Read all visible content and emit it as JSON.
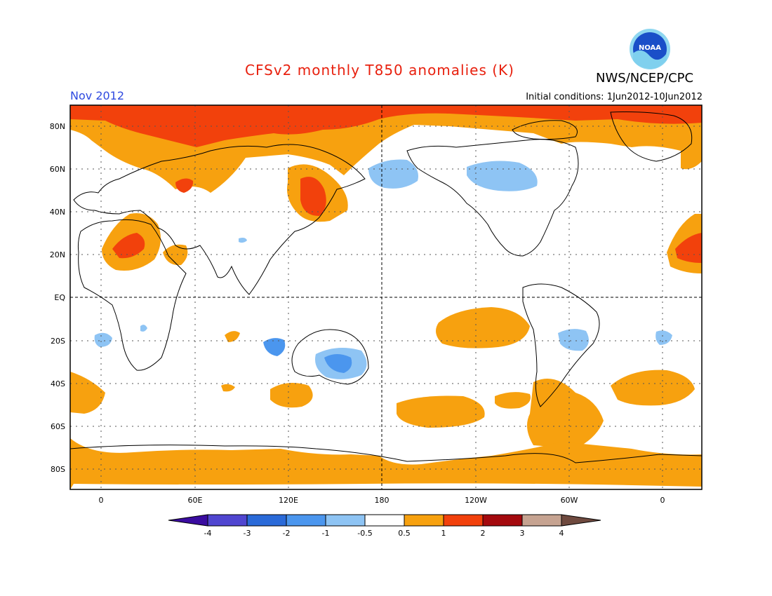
{
  "title": "CFSv2 monthly T850 anomalies (K)",
  "agency": "NWS/NCEP/CPC",
  "logo_text": "NOAA",
  "month_label": "Nov 2012",
  "initial_conditions": "Initial conditions: 1Jun2012-10Jun2012",
  "lat_labels": [
    "80N",
    "60N",
    "40N",
    "20N",
    "EQ",
    "20S",
    "40S",
    "60S",
    "80S"
  ],
  "lon_labels": [
    "0",
    "60E",
    "120E",
    "180",
    "120W",
    "60W",
    "0"
  ],
  "colorbar": {
    "tick_labels": [
      "-4",
      "-3",
      "-2",
      "-1",
      "-0.5",
      "0.5",
      "1",
      "2",
      "3",
      "4"
    ],
    "colors": [
      "#3a0ca0",
      "#5046d0",
      "#2a6ad8",
      "#4b96ee",
      "#8ec4f4",
      "#ffffff",
      "#f7a10f",
      "#f2410c",
      "#a4090e",
      "#c6a391",
      "#6f4a3f"
    ]
  },
  "colors": {
    "warm_1": "#f7a10f",
    "warm_2": "#f2410c",
    "cool_1": "#8ec4f4",
    "cool_2": "#4b96ee"
  }
}
